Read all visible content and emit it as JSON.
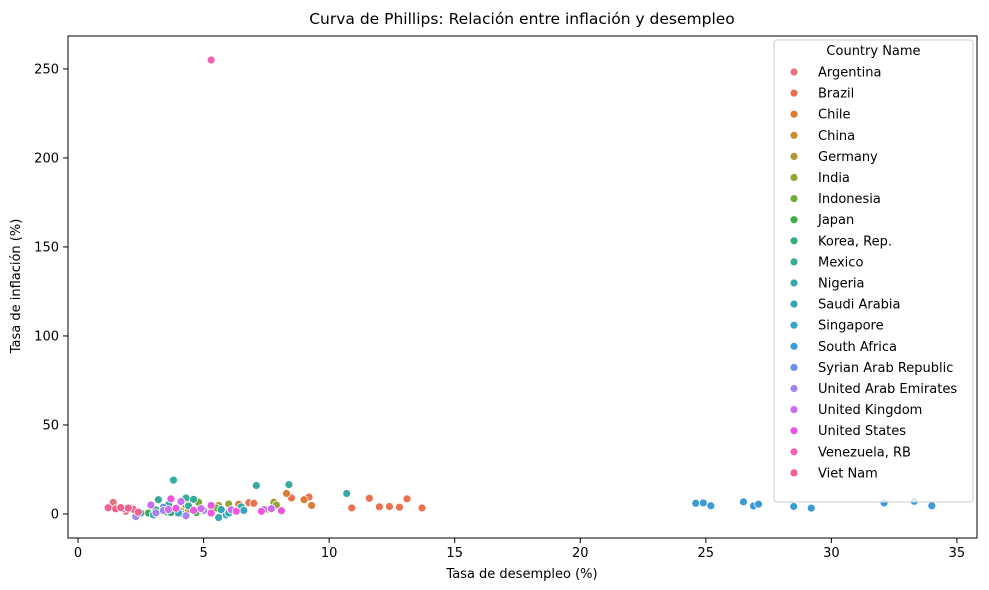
{
  "chart_data": {
    "type": "scatter",
    "title": "Curva de Phillips: Relación entre inflación y desempleo",
    "xlabel": "Tasa de desempleo (%)",
    "ylabel": "Tasa de inflación (%)",
    "xlim": [
      -0.4,
      35.8
    ],
    "ylim": [
      -13.5,
      268.5
    ],
    "xticks": [
      0,
      5,
      10,
      15,
      20,
      25,
      30,
      35
    ],
    "yticks": [
      0,
      50,
      100,
      150,
      200,
      250
    ],
    "grid": false,
    "legend": {
      "title": "Country Name",
      "placement": "top-right"
    },
    "series": [
      {
        "name": "Argentina",
        "color": "#e5737e",
        "points": [
          [
            1.4,
            6.5
          ],
          [
            1.6,
            3.2
          ],
          [
            1.9,
            1.5
          ],
          [
            2.2,
            2.5
          ]
        ]
      },
      {
        "name": "Brazil",
        "color": "#ea7050",
        "points": [
          [
            6.8,
            6.3
          ],
          [
            7.0,
            6.0
          ],
          [
            8.5,
            9.0
          ],
          [
            9.2,
            9.5
          ],
          [
            10.9,
            3.4
          ],
          [
            11.6,
            8.8
          ],
          [
            12.0,
            4.0
          ],
          [
            12.4,
            4.2
          ],
          [
            12.8,
            3.8
          ],
          [
            13.1,
            8.5
          ],
          [
            13.7,
            3.4
          ]
        ]
      },
      {
        "name": "Chile",
        "color": "#db7d34",
        "points": [
          [
            6.4,
            5.5
          ],
          [
            7.5,
            2.5
          ],
          [
            8.3,
            11.5
          ],
          [
            9.0,
            8.0
          ],
          [
            9.3,
            4.8
          ]
        ]
      },
      {
        "name": "China",
        "color": "#c98b2e",
        "points": [
          [
            3.9,
            2.0
          ],
          [
            4.1,
            1.8
          ],
          [
            4.4,
            2.3
          ],
          [
            4.6,
            2.5
          ],
          [
            5.0,
            1.7
          ]
        ]
      },
      {
        "name": "Germany",
        "color": "#b09a30",
        "points": [
          [
            3.3,
            1.6
          ],
          [
            4.9,
            2.0
          ],
          [
            5.7,
            1.8
          ],
          [
            7.5,
            2.5
          ],
          [
            7.8,
            7.0
          ]
        ]
      },
      {
        "name": "India",
        "color": "#96a232",
        "points": [
          [
            5.3,
            3.5
          ],
          [
            5.6,
            4.8
          ],
          [
            6.0,
            5.6
          ],
          [
            7.8,
            6.5
          ],
          [
            7.9,
            5.0
          ]
        ]
      },
      {
        "name": "Indonesia",
        "color": "#6ead36",
        "points": [
          [
            3.5,
            3.0
          ],
          [
            4.3,
            5.0
          ],
          [
            4.8,
            6.5
          ],
          [
            5.5,
            3.4
          ]
        ]
      },
      {
        "name": "Japan",
        "color": "#3eae4a",
        "points": [
          [
            2.8,
            0.5
          ],
          [
            3.0,
            -0.3
          ],
          [
            3.4,
            1.5
          ],
          [
            4.1,
            0.2
          ],
          [
            4.7,
            0.8
          ]
        ]
      },
      {
        "name": "Korea, Rep.",
        "color": "#33ae79",
        "points": [
          [
            3.1,
            2.3
          ],
          [
            3.5,
            1.3
          ],
          [
            3.7,
            0.8
          ],
          [
            4.0,
            1.9
          ]
        ]
      },
      {
        "name": "Mexico",
        "color": "#34ac96",
        "points": [
          [
            3.2,
            8.0
          ],
          [
            4.3,
            9.0
          ],
          [
            4.6,
            8.2
          ],
          [
            4.4,
            4.5
          ],
          [
            3.6,
            5.2
          ]
        ]
      },
      {
        "name": "Nigeria",
        "color": "#35aaa7",
        "points": [
          [
            3.8,
            19.0
          ],
          [
            7.1,
            16.0
          ],
          [
            8.4,
            16.5
          ],
          [
            10.7,
            11.5
          ],
          [
            6.5,
            4.0
          ]
        ]
      },
      {
        "name": "Saudi Arabia",
        "color": "#36a7b4",
        "points": [
          [
            5.6,
            -2.0
          ],
          [
            5.9,
            -0.5
          ],
          [
            5.7,
            2.5
          ],
          [
            6.0,
            0.5
          ]
        ]
      },
      {
        "name": "Singapore",
        "color": "#38a6c3",
        "points": [
          [
            2.5,
            0.5
          ],
          [
            3.0,
            -0.5
          ],
          [
            4.0,
            0.5
          ],
          [
            6.6,
            2.0
          ]
        ]
      },
      {
        "name": "South Africa",
        "color": "#3b9bd8",
        "points": [
          [
            24.6,
            6.0
          ],
          [
            24.9,
            6.2
          ],
          [
            25.2,
            4.6
          ],
          [
            26.5,
            6.8
          ],
          [
            26.9,
            4.5
          ],
          [
            27.1,
            5.5
          ],
          [
            28.5,
            4.2
          ],
          [
            29.2,
            3.3
          ],
          [
            32.1,
            6.2
          ],
          [
            33.3,
            7.1
          ],
          [
            34.0,
            4.6
          ]
        ]
      },
      {
        "name": "Syrian Arab Republic",
        "color": "#6d8fe6",
        "points": [
          [
            3.4,
            3.8
          ],
          [
            4.9,
            3.0
          ]
        ]
      },
      {
        "name": "United Arab Emirates",
        "color": "#a385ee",
        "points": [
          [
            2.3,
            -1.5
          ],
          [
            3.1,
            0.6
          ],
          [
            3.4,
            2.0
          ],
          [
            4.3,
            -1.0
          ],
          [
            5.0,
            2.0
          ]
        ]
      },
      {
        "name": "United Kingdom",
        "color": "#cc6cef",
        "points": [
          [
            2.9,
            5.0
          ],
          [
            3.6,
            2.5
          ],
          [
            4.1,
            7.0
          ],
          [
            4.9,
            3.0
          ],
          [
            6.1,
            2.4
          ],
          [
            7.4,
            2.5
          ],
          [
            7.7,
            3.0
          ]
        ]
      },
      {
        "name": "United States",
        "color": "#e957df",
        "points": [
          [
            3.7,
            8.5
          ],
          [
            3.9,
            3.2
          ],
          [
            4.6,
            2.0
          ],
          [
            5.3,
            4.8
          ],
          [
            5.3,
            0.5
          ],
          [
            6.3,
            1.5
          ],
          [
            7.3,
            1.5
          ],
          [
            8.1,
            1.8
          ]
        ]
      },
      {
        "name": "Venezuela, RB",
        "color": "#f064b3",
        "points": [
          [
            5.3,
            255.0
          ],
          [
            1.8,
            3.0
          ],
          [
            2.1,
            3.4
          ]
        ]
      },
      {
        "name": "Viet Nam",
        "color": "#f25f8d",
        "points": [
          [
            1.2,
            3.5
          ],
          [
            1.5,
            2.9
          ],
          [
            1.7,
            3.6
          ],
          [
            2.2,
            2.6
          ],
          [
            2.4,
            1.0
          ],
          [
            2.0,
            3.3
          ]
        ]
      }
    ]
  }
}
